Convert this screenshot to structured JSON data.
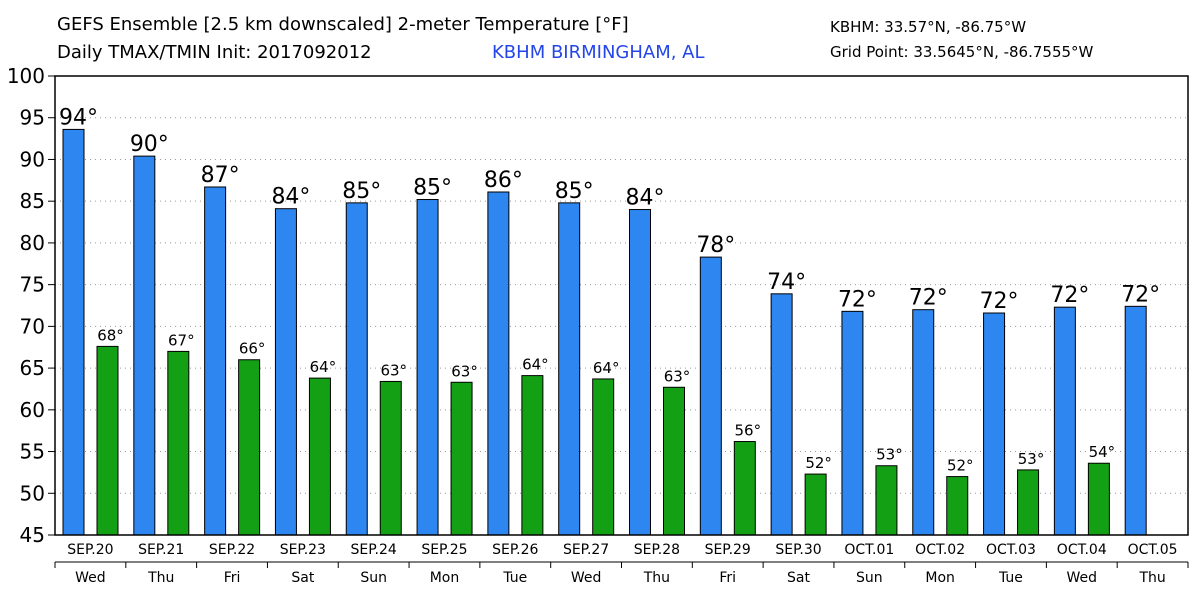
{
  "header": {
    "title_line1": "GEFS Ensemble [2.5 km downscaled] 2-meter Temperature [°F]",
    "title_line2": "Daily TMAX/TMIN Init: 2017092012",
    "location": "KBHM BIRMINGHAM, AL",
    "coord_line1": "KBHM: 33.57°N, -86.75°W",
    "coord_line2": "Grid Point: 33.5645°N, -86.7555°W"
  },
  "colors": {
    "tmax": "#2e86f0",
    "tmin": "#14a014",
    "location_text": "#2446e8",
    "grid": "#999999"
  },
  "chart_data": {
    "type": "bar",
    "ylim": [
      45,
      100
    ],
    "yticks": [
      45,
      50,
      55,
      60,
      65,
      70,
      75,
      80,
      85,
      90,
      95,
      100
    ],
    "grid": true,
    "categories": [
      "SEP.20",
      "SEP.21",
      "SEP.22",
      "SEP.23",
      "SEP.24",
      "SEP.25",
      "SEP.26",
      "SEP.27",
      "SEP.28",
      "SEP.29",
      "SEP.30",
      "OCT.01",
      "OCT.02",
      "OCT.03",
      "OCT.04",
      "OCT.05"
    ],
    "weekdays": [
      "Wed",
      "Thu",
      "Fri",
      "Sat",
      "Sun",
      "Mon",
      "Tue",
      "Wed",
      "Thu",
      "Fri",
      "Sat",
      "Sun",
      "Mon",
      "Tue",
      "Wed",
      "Thu"
    ],
    "series": [
      {
        "key": "tmax",
        "values": [
          93.6,
          90.4,
          86.7,
          84.1,
          84.8,
          85.2,
          86.1,
          84.8,
          84.0,
          78.3,
          73.9,
          71.8,
          72.0,
          71.6,
          72.3,
          72.4
        ],
        "labels": [
          "94°",
          "90°",
          "87°",
          "84°",
          "85°",
          "85°",
          "86°",
          "85°",
          "84°",
          "78°",
          "74°",
          "72°",
          "72°",
          "72°",
          "72°",
          "72°"
        ]
      },
      {
        "key": "tmin",
        "values": [
          67.6,
          67.0,
          66.0,
          63.8,
          63.4,
          63.3,
          64.1,
          63.7,
          62.7,
          56.2,
          52.3,
          53.3,
          52.0,
          52.8,
          53.6,
          null
        ],
        "labels": [
          "68°",
          "67°",
          "66°",
          "64°",
          "63°",
          "63°",
          "64°",
          "64°",
          "63°",
          "56°",
          "52°",
          "53°",
          "52°",
          "53°",
          "54°",
          ""
        ]
      }
    ]
  }
}
